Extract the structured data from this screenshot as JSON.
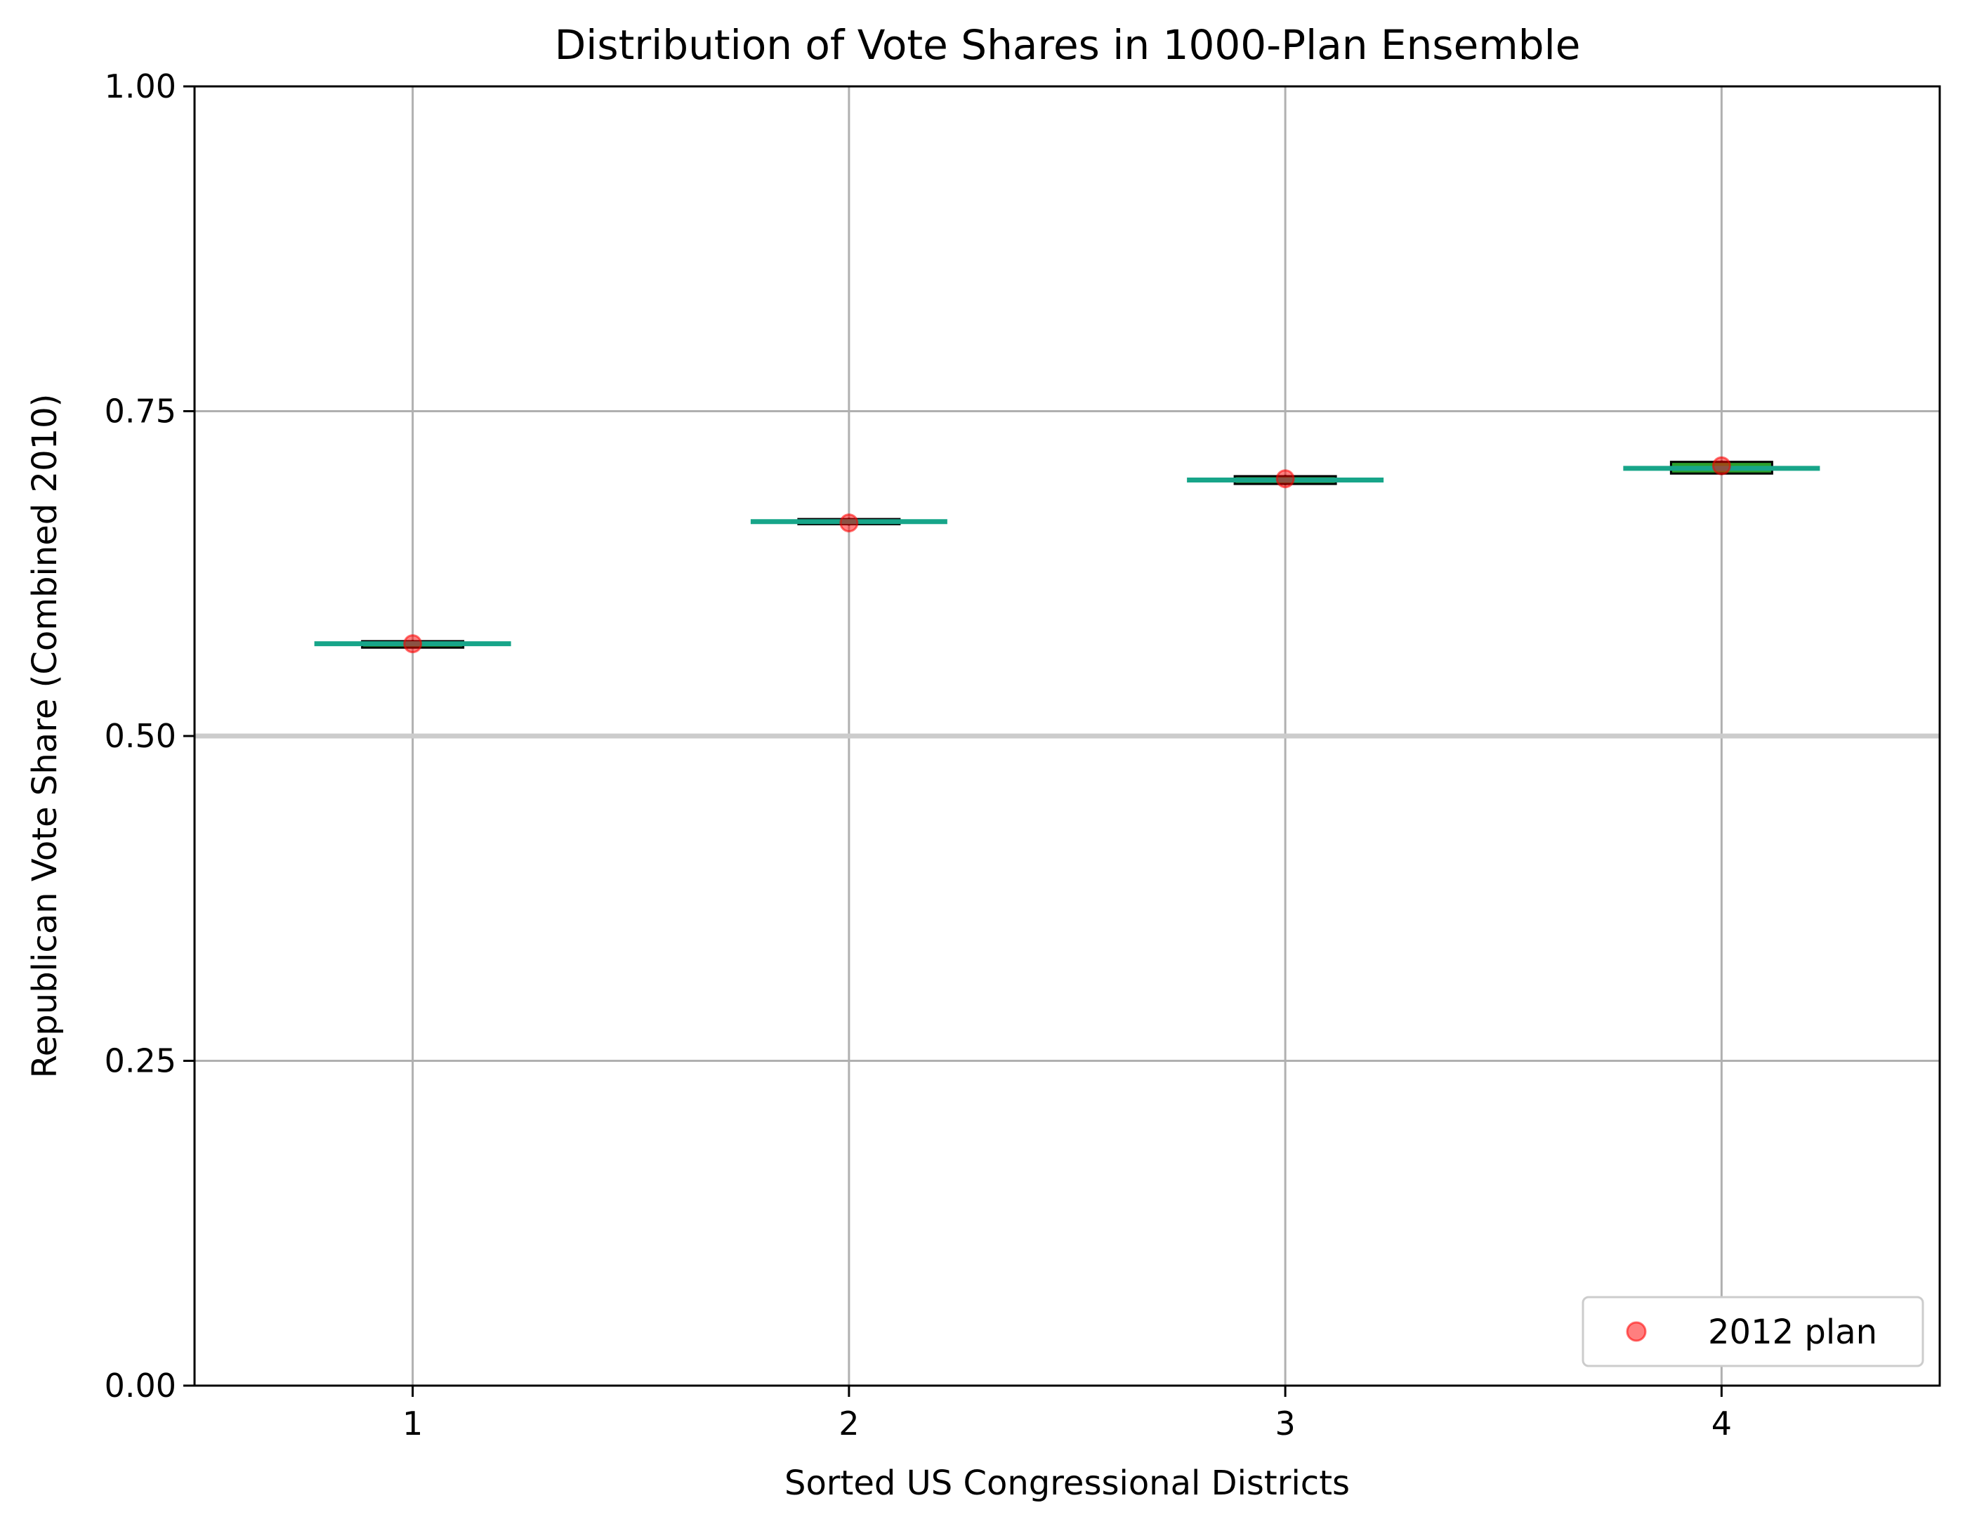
{
  "chart_data": {
    "type": "box",
    "title": "Distribution of Vote Shares in 1000-Plan Ensemble",
    "xlabel": "Sorted US Congressional Districts",
    "ylabel": "Republican Vote Share (Combined 2010)",
    "categories": [
      "1",
      "2",
      "3",
      "4"
    ],
    "ylim": [
      0,
      1
    ],
    "xlim": [
      0.5,
      4.5
    ],
    "yticks": [
      0.0,
      0.25,
      0.5,
      0.75,
      1.0
    ],
    "ytick_labels": [
      "0.00",
      "0.25",
      "0.50",
      "0.75",
      "1.00"
    ],
    "grid": true,
    "reference_line": 0.5,
    "boxes": [
      {
        "district": "1",
        "whisker_low": 0.568,
        "q1": 0.568,
        "median": 0.571,
        "q3": 0.573,
        "whisker_high": 0.574
      },
      {
        "district": "2",
        "whisker_low": 0.662,
        "q1": 0.663,
        "median": 0.665,
        "q3": 0.667,
        "whisker_high": 0.668
      },
      {
        "district": "3",
        "whisker_low": 0.693,
        "q1": 0.694,
        "median": 0.697,
        "q3": 0.7,
        "whisker_high": 0.701
      },
      {
        "district": "4",
        "whisker_low": 0.701,
        "q1": 0.702,
        "median": 0.706,
        "q3": 0.711,
        "whisker_high": 0.712
      }
    ],
    "series": [
      {
        "name": "2012 plan",
        "type": "scatter",
        "x": [
          "1",
          "2",
          "3",
          "4"
        ],
        "values": [
          0.571,
          0.664,
          0.698,
          0.708
        ]
      }
    ],
    "legend": {
      "placement": "lower-right",
      "entries": [
        "2012 plan"
      ]
    },
    "colors": {
      "box_fill": "#2ca02c",
      "box_edge": "#000000",
      "median": "#17a589",
      "marker": "#ff0000",
      "grid": "#b0b0b0",
      "reference_line": "#cccccc"
    }
  }
}
